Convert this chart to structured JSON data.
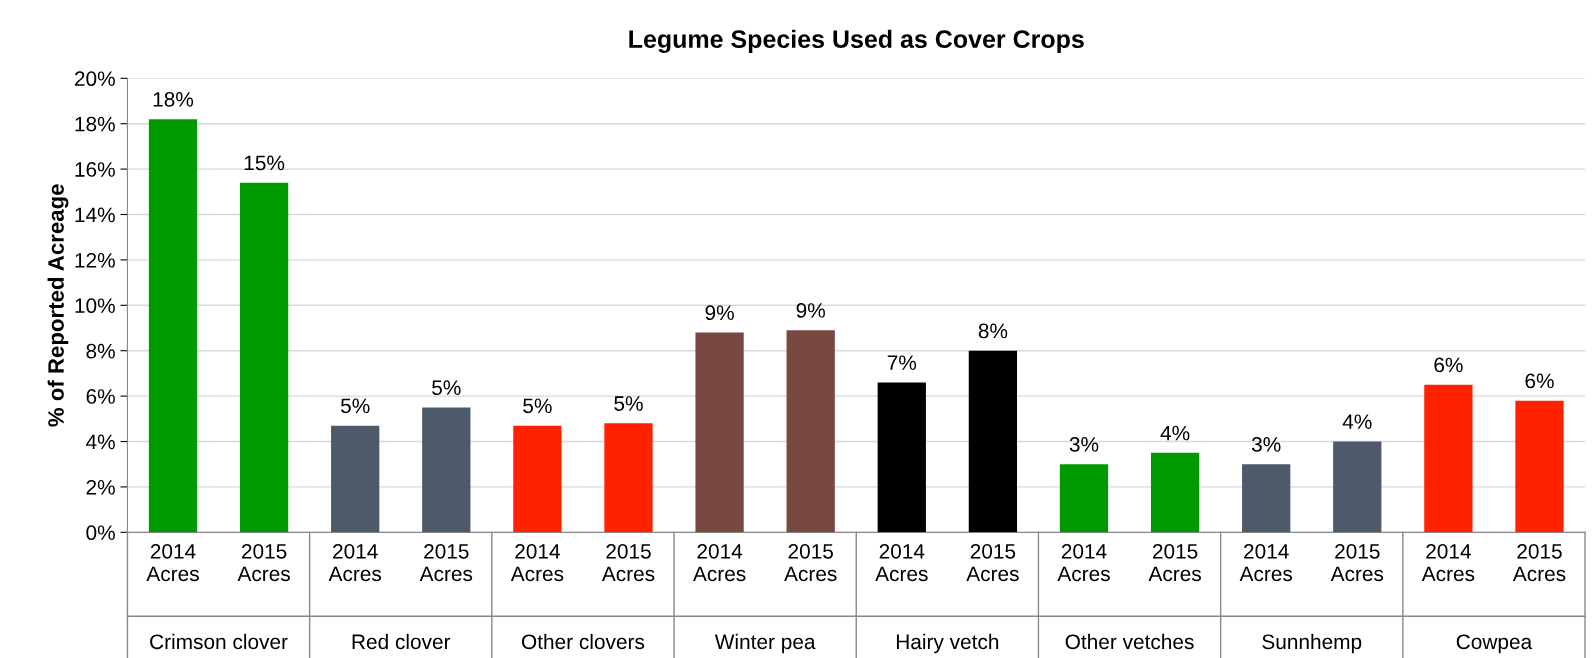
{
  "chart_data": {
    "type": "bar",
    "title": "Legume Species Used as Cover Crops",
    "ylabel": "% of Reported Acreage",
    "categories": [
      "2014\nAcres",
      "2015\nAcres",
      "2014\nAcres",
      "2015\nAcres",
      "2014\nAcres",
      "2015\nAcres",
      "2014\nAcres",
      "2015\nAcres",
      "2014\nAcres",
      "2015\nAcres",
      "2014\nAcres",
      "2015\nAcres",
      "2014\nAcres",
      "2015\nAcres",
      "2014\nAcres",
      "2015\nAcres"
    ],
    "values": [
      18.2,
      15.4,
      4.7,
      5.5,
      4.7,
      4.8,
      8.8,
      8.9,
      6.6,
      8.0,
      3.0,
      3.5,
      3.0,
      4.0,
      6.5,
      5.8
    ],
    "colors": [
      "#009900",
      "#009900",
      "#4d5a6a",
      "#4d5a6a",
      "#ff2200",
      "#ff2200",
      "#774940",
      "#774940",
      "#000000",
      "#000000",
      "#009900",
      "#009900",
      "#4d5a6a",
      "#4d5a6a",
      "#ff2200",
      "#ff2200"
    ],
    "value_labels": [
      "18%",
      "15%",
      "5%",
      "5%",
      "5%",
      "5%",
      "9%",
      "9%",
      "7%",
      "8%",
      "3%",
      "4%",
      "3%",
      "4%",
      "6%",
      "6%"
    ],
    "annotations": [
      "Crimson clover",
      "Red clover",
      "Other clovers",
      "Winter pea",
      "Hairy vetch",
      "Other vetches",
      "Sunnhemp",
      "Cowpea"
    ],
    "ylim": [
      0,
      20
    ],
    "yticks": [
      {
        "value": 0,
        "label": "0%"
      },
      {
        "value": 2,
        "label": "2%"
      },
      {
        "value": 4,
        "label": "4%"
      },
      {
        "value": 6,
        "label": "6%"
      },
      {
        "value": 8,
        "label": "8%"
      },
      {
        "value": 10,
        "label": "10%"
      },
      {
        "value": 12,
        "label": "12%"
      },
      {
        "value": 14,
        "label": "14%"
      },
      {
        "value": 16,
        "label": "16%"
      },
      {
        "value": 18,
        "label": "18%"
      },
      {
        "value": 20,
        "label": "20%"
      }
    ],
    "grid": "y"
  }
}
